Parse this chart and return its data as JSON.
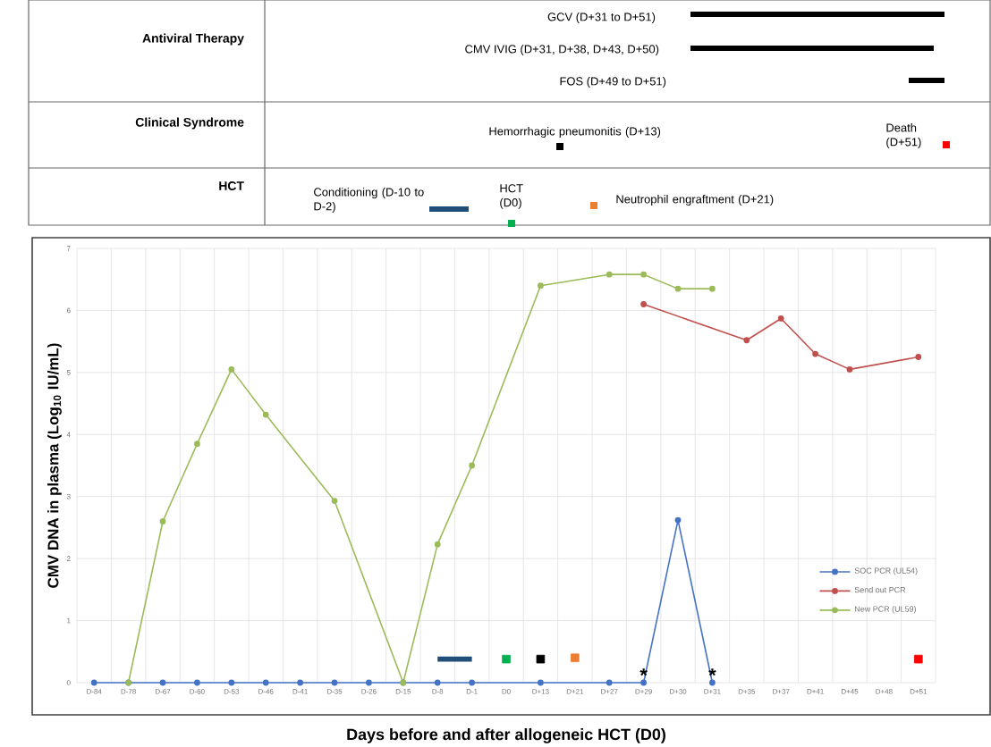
{
  "chart_data": [
    {
      "type": "other",
      "annotations": [
        "Antiviral Therapy",
        "Clinical Syndrome",
        "HCT",
        "GCV (D+31 to D+51)",
        "CMV IVIG (D+31, D+38, D+43, D+50)",
        "FOS (D+49 to D+51)",
        "Hemorrhagic pneumonitis (D+13)",
        "Death (D+51)",
        "Conditioning (D-10 to D-2)",
        "HCT (D0)",
        "Neutrophil engraftment (D+21)"
      ]
    },
    {
      "type": "line",
      "xlabel": "Days before and after allogeneic HCT (D0)",
      "ylabel": "CMV DNA in plasma (Log$_{10}$ IU/mL)",
      "categories": [
        "D-84",
        "D-78",
        "D-67",
        "D-60",
        "D-53",
        "D-46",
        "D-41",
        "D-35",
        "D-26",
        "D-15",
        "D-8",
        "D-1",
        "D0",
        "D+13",
        "D+21",
        "D+27",
        "D+29",
        "D+30",
        "D+31",
        "D+35",
        "D+37",
        "D+41",
        "D+45",
        "D+48",
        "D+51"
      ],
      "ylim": [
        0,
        7
      ],
      "yticks": [
        0,
        1,
        2,
        3,
        4,
        5,
        6,
        7
      ],
      "grid": true,
      "legend": "bottom right",
      "marker": "circle",
      "series": [
        {
          "name": "SOC PCR (UL54)",
          "color": "#4472c4",
          "values": [
            0,
            0,
            0,
            0,
            0,
            0,
            0,
            0,
            0,
            0,
            0,
            0,
            null,
            0,
            null,
            0,
            0,
            2.62,
            0,
            null,
            null,
            null,
            null,
            null,
            null
          ]
        },
        {
          "name": "Send out PCR",
          "color": "#c0504d",
          "values": [
            null,
            null,
            null,
            null,
            null,
            null,
            null,
            null,
            null,
            null,
            null,
            null,
            null,
            null,
            null,
            null,
            6.1,
            null,
            null,
            5.52,
            5.87,
            5.3,
            5.05,
            null,
            5.25
          ]
        },
        {
          "name": "New PCR (UL59)",
          "color": "#9bbb59",
          "values": [
            null,
            0,
            2.6,
            3.85,
            5.05,
            4.32,
            null,
            2.93,
            null,
            0,
            2.23,
            3.5,
            null,
            6.4,
            null,
            6.58,
            6.58,
            6.35,
            6.35,
            null,
            null,
            null,
            null,
            null,
            null
          ]
        },
        {
          "type": "line",
          "marker": "none",
          "color": "#1f4e79",
          "x": [
            "D-8",
            "D-1"
          ],
          "values": [
            0.38,
            0.38
          ]
        },
        {
          "type": "scatter",
          "marker": "square",
          "color": "#00b050",
          "x": [
            "D0"
          ],
          "values": [
            0.38
          ]
        },
        {
          "type": "scatter",
          "marker": "square",
          "color": "#000000",
          "x": [
            "D+13"
          ],
          "values": [
            0.38
          ]
        },
        {
          "type": "scatter",
          "marker": "square",
          "color": "#ed7d31",
          "x": [
            "D+21"
          ],
          "values": [
            0.4
          ]
        },
        {
          "type": "scatter",
          "marker": "square",
          "color": "#ff0000",
          "x": [
            "D+51"
          ],
          "values": [
            0.38
          ]
        }
      ],
      "annotations": [
        {
          "text": "*",
          "x": "D+29",
          "y": 0.12
        },
        {
          "text": "*",
          "x": "D+31",
          "y": 0.12
        }
      ]
    }
  ]
}
